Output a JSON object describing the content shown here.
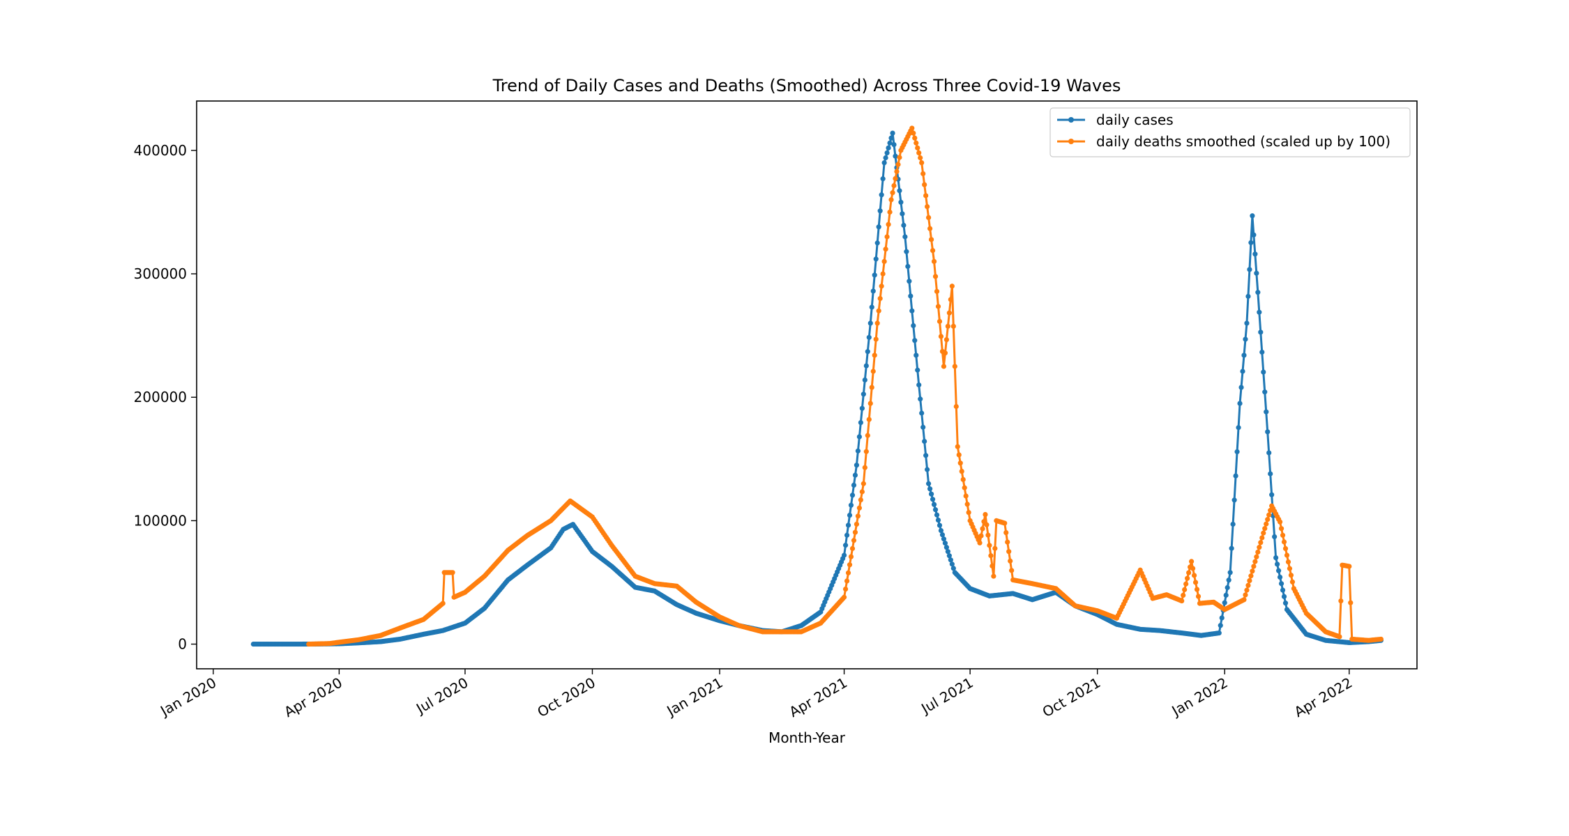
{
  "chart_data": {
    "type": "line",
    "title": "Trend of Daily Cases and Deaths (Smoothed) Across Three Covid-19 Waves",
    "xlabel": "Month-Year",
    "ylabel": "",
    "x_axis_type": "date",
    "xlim": [
      "2019-12-20",
      "2022-05-20"
    ],
    "ylim": [
      -20000,
      440000
    ],
    "x_ticks": [
      {
        "date": "2020-01-01",
        "label": "Jan 2020"
      },
      {
        "date": "2020-04-01",
        "label": "Apr 2020"
      },
      {
        "date": "2020-07-01",
        "label": "Jul 2020"
      },
      {
        "date": "2020-10-01",
        "label": "Oct 2020"
      },
      {
        "date": "2021-01-01",
        "label": "Jan 2021"
      },
      {
        "date": "2021-04-01",
        "label": "Apr 2021"
      },
      {
        "date": "2021-07-01",
        "label": "Jul 2021"
      },
      {
        "date": "2021-10-01",
        "label": "Oct 2021"
      },
      {
        "date": "2022-01-01",
        "label": "Jan 2022"
      },
      {
        "date": "2022-04-01",
        "label": "Apr 2022"
      }
    ],
    "y_ticks": [
      {
        "value": 0,
        "label": "0"
      },
      {
        "value": 100000,
        "label": "100000"
      },
      {
        "value": 200000,
        "label": "200000"
      },
      {
        "value": 300000,
        "label": "300000"
      },
      {
        "value": 400000,
        "label": "400000"
      }
    ],
    "grid": false,
    "legend_position": "top-right",
    "markers": true,
    "series": [
      {
        "name": "daily cases",
        "color": "#1f77b4",
        "points": [
          [
            "2020-01-30",
            0
          ],
          [
            "2020-02-15",
            0
          ],
          [
            "2020-03-01",
            0
          ],
          [
            "2020-03-15",
            50
          ],
          [
            "2020-04-01",
            300
          ],
          [
            "2020-04-15",
            1000
          ],
          [
            "2020-05-01",
            2000
          ],
          [
            "2020-05-15",
            4000
          ],
          [
            "2020-06-01",
            8000
          ],
          [
            "2020-06-15",
            11000
          ],
          [
            "2020-07-01",
            17000
          ],
          [
            "2020-07-15",
            29000
          ],
          [
            "2020-08-01",
            52000
          ],
          [
            "2020-08-15",
            64000
          ],
          [
            "2020-09-01",
            78000
          ],
          [
            "2020-09-10",
            93000
          ],
          [
            "2020-09-17",
            97000
          ],
          [
            "2020-10-01",
            75000
          ],
          [
            "2020-10-15",
            63000
          ],
          [
            "2020-11-01",
            46000
          ],
          [
            "2020-11-15",
            43000
          ],
          [
            "2020-12-01",
            32000
          ],
          [
            "2020-12-15",
            25000
          ],
          [
            "2021-01-01",
            19000
          ],
          [
            "2021-01-15",
            15000
          ],
          [
            "2021-02-01",
            11000
          ],
          [
            "2021-02-15",
            10000
          ],
          [
            "2021-03-01",
            15000
          ],
          [
            "2021-03-15",
            26000
          ],
          [
            "2021-04-01",
            72000
          ],
          [
            "2021-04-10",
            145000
          ],
          [
            "2021-04-20",
            260000
          ],
          [
            "2021-04-30",
            390000
          ],
          [
            "2021-05-06",
            414000
          ],
          [
            "2021-05-15",
            330000
          ],
          [
            "2021-05-25",
            210000
          ],
          [
            "2021-06-01",
            130000
          ],
          [
            "2021-06-10",
            92000
          ],
          [
            "2021-06-20",
            58000
          ],
          [
            "2021-07-01",
            45000
          ],
          [
            "2021-07-15",
            39000
          ],
          [
            "2021-08-01",
            41000
          ],
          [
            "2021-08-15",
            36000
          ],
          [
            "2021-09-01",
            42000
          ],
          [
            "2021-09-15",
            31000
          ],
          [
            "2021-10-01",
            24000
          ],
          [
            "2021-10-15",
            16000
          ],
          [
            "2021-11-01",
            12000
          ],
          [
            "2021-11-15",
            11000
          ],
          [
            "2021-12-01",
            9000
          ],
          [
            "2021-12-15",
            7000
          ],
          [
            "2021-12-28",
            9000
          ],
          [
            "2022-01-05",
            58000
          ],
          [
            "2022-01-12",
            195000
          ],
          [
            "2022-01-17",
            260000
          ],
          [
            "2022-01-21",
            347000
          ],
          [
            "2022-01-25",
            285000
          ],
          [
            "2022-02-01",
            172000
          ],
          [
            "2022-02-07",
            70000
          ],
          [
            "2022-02-15",
            28000
          ],
          [
            "2022-03-01",
            8000
          ],
          [
            "2022-03-15",
            3000
          ],
          [
            "2022-04-01",
            1200
          ],
          [
            "2022-04-15",
            2000
          ],
          [
            "2022-04-24",
            3000
          ]
        ]
      },
      {
        "name": "daily deaths smoothed (scaled up by 100)",
        "color": "#ff7f0e",
        "points": [
          [
            "2020-03-10",
            0
          ],
          [
            "2020-03-25",
            500
          ],
          [
            "2020-04-01",
            1500
          ],
          [
            "2020-04-15",
            3500
          ],
          [
            "2020-05-01",
            7000
          ],
          [
            "2020-05-15",
            13000
          ],
          [
            "2020-06-01",
            20000
          ],
          [
            "2020-06-15",
            33000
          ],
          [
            "2020-06-16",
            58000
          ],
          [
            "2020-06-22",
            58000
          ],
          [
            "2020-06-23",
            38000
          ],
          [
            "2020-07-01",
            42000
          ],
          [
            "2020-07-15",
            55000
          ],
          [
            "2020-08-01",
            76000
          ],
          [
            "2020-08-15",
            88000
          ],
          [
            "2020-09-01",
            100000
          ],
          [
            "2020-09-15",
            116000
          ],
          [
            "2020-10-01",
            103000
          ],
          [
            "2020-10-15",
            80000
          ],
          [
            "2020-11-01",
            55000
          ],
          [
            "2020-11-15",
            49000
          ],
          [
            "2020-12-01",
            47000
          ],
          [
            "2020-12-15",
            34000
          ],
          [
            "2021-01-01",
            22000
          ],
          [
            "2021-01-15",
            15000
          ],
          [
            "2021-02-01",
            10000
          ],
          [
            "2021-02-15",
            10000
          ],
          [
            "2021-03-01",
            10000
          ],
          [
            "2021-03-15",
            17000
          ],
          [
            "2021-04-01",
            38000
          ],
          [
            "2021-04-15",
            130000
          ],
          [
            "2021-04-25",
            260000
          ],
          [
            "2021-05-05",
            360000
          ],
          [
            "2021-05-12",
            400000
          ],
          [
            "2021-05-20",
            418000
          ],
          [
            "2021-05-27",
            390000
          ],
          [
            "2021-06-05",
            310000
          ],
          [
            "2021-06-12",
            225000
          ],
          [
            "2021-06-18",
            290000
          ],
          [
            "2021-06-22",
            160000
          ],
          [
            "2021-07-01",
            100000
          ],
          [
            "2021-07-08",
            82000
          ],
          [
            "2021-07-12",
            105000
          ],
          [
            "2021-07-18",
            55000
          ],
          [
            "2021-07-20",
            100000
          ],
          [
            "2021-07-26",
            98000
          ],
          [
            "2021-08-01",
            52000
          ],
          [
            "2021-08-15",
            49000
          ],
          [
            "2021-09-01",
            45000
          ],
          [
            "2021-09-15",
            31000
          ],
          [
            "2021-10-01",
            27000
          ],
          [
            "2021-10-15",
            21000
          ],
          [
            "2021-11-01",
            60000
          ],
          [
            "2021-11-10",
            37000
          ],
          [
            "2021-11-20",
            40000
          ],
          [
            "2021-12-01",
            35000
          ],
          [
            "2021-12-08",
            67000
          ],
          [
            "2021-12-14",
            33000
          ],
          [
            "2021-12-24",
            34000
          ],
          [
            "2022-01-01",
            28000
          ],
          [
            "2022-01-15",
            36000
          ],
          [
            "2022-01-29",
            90000
          ],
          [
            "2022-02-04",
            112000
          ],
          [
            "2022-02-10",
            99000
          ],
          [
            "2022-02-20",
            45000
          ],
          [
            "2022-03-01",
            25000
          ],
          [
            "2022-03-15",
            10000
          ],
          [
            "2022-03-25",
            6000
          ],
          [
            "2022-03-27",
            64000
          ],
          [
            "2022-04-01",
            63000
          ],
          [
            "2022-04-03",
            4000
          ],
          [
            "2022-04-15",
            3000
          ],
          [
            "2022-04-24",
            4000
          ]
        ]
      }
    ]
  }
}
